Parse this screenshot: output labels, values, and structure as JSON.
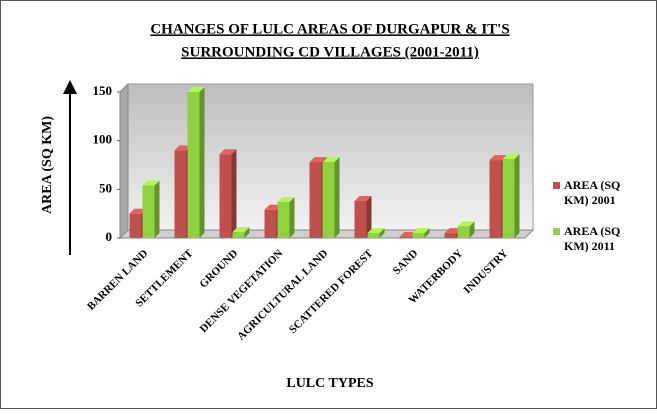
{
  "chart_data": {
    "type": "bar3d",
    "title": [
      "CHANGES OF LULC AREAS OF DURGAPUR  & IT'S",
      "SURROUNDING  CD VILLAGES  (2001-2011)"
    ],
    "y_label": "AREA (SQ KM)",
    "x_label": "LULC TYPES",
    "categories": [
      "BARREN LAND",
      "SETTLEMENT",
      "GROUND",
      "DENSE VEGETATION",
      "AGRICULTURAL LAND",
      "SCATTERED FOREST",
      "SAND",
      "WATERBODY",
      "INDUSTRY"
    ],
    "series": [
      {
        "name": "AREA (SQ KM) 2001",
        "color": "#c0504d",
        "values": [
          25,
          90,
          86,
          29,
          78,
          38,
          1,
          5,
          80
        ]
      },
      {
        "name": "AREA (SQ KM) 2011",
        "color": "#8fd13f",
        "values": [
          54,
          150,
          6,
          37,
          78,
          5,
          5,
          12,
          81
        ]
      }
    ],
    "ylim": [
      0,
      150
    ],
    "yticks": [
      0,
      50,
      100,
      150
    ],
    "legend": "right"
  }
}
